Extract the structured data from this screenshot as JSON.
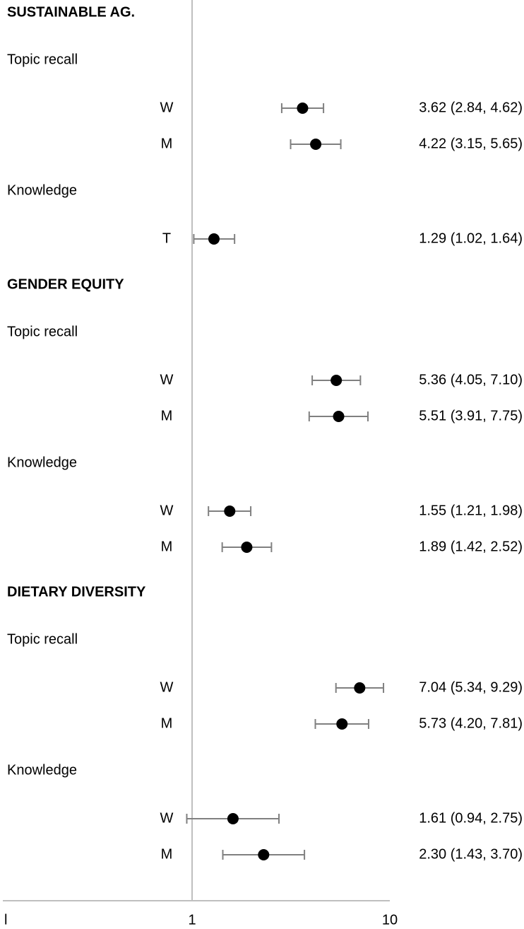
{
  "chart_data": {
    "type": "forest",
    "x_scale": "log",
    "xlim": [
      0.1,
      10
    ],
    "reference_line": 1,
    "x_ticks": [
      {
        "value": 0.1,
        "label": "l"
      },
      {
        "value": 1,
        "label": "1"
      },
      {
        "value": 10,
        "label": "10"
      }
    ],
    "sections": [
      {
        "title": "SUSTAINABLE AG.",
        "outcomes": [
          {
            "name": "Topic recall",
            "rows": [
              {
                "group": "W",
                "est": 3.62,
                "lo": 2.84,
                "hi": 4.62,
                "label": "3.62 (2.84, 4.62)"
              },
              {
                "group": "M",
                "est": 4.22,
                "lo": 3.15,
                "hi": 5.65,
                "label": "4.22 (3.15, 5.65)"
              }
            ]
          },
          {
            "name": "Knowledge",
            "rows": [
              {
                "group": "T",
                "est": 1.29,
                "lo": 1.02,
                "hi": 1.64,
                "label": "1.29 (1.02, 1.64)"
              }
            ]
          }
        ]
      },
      {
        "title": "GENDER EQUITY",
        "outcomes": [
          {
            "name": "Topic recall",
            "rows": [
              {
                "group": "W",
                "est": 5.36,
                "lo": 4.05,
                "hi": 7.1,
                "label": "5.36 (4.05, 7.10)"
              },
              {
                "group": "M",
                "est": 5.51,
                "lo": 3.91,
                "hi": 7.75,
                "label": "5.51 (3.91, 7.75)"
              }
            ]
          },
          {
            "name": "Knowledge",
            "rows": [
              {
                "group": "W",
                "est": 1.55,
                "lo": 1.21,
                "hi": 1.98,
                "label": "1.55 (1.21, 1.98)"
              },
              {
                "group": "M",
                "est": 1.89,
                "lo": 1.42,
                "hi": 2.52,
                "label": "1.89 (1.42, 2.52)"
              }
            ]
          }
        ]
      },
      {
        "title": "DIETARY DIVERSITY",
        "outcomes": [
          {
            "name": "Topic recall",
            "rows": [
              {
                "group": "W",
                "est": 7.04,
                "lo": 5.34,
                "hi": 9.29,
                "label": "7.04 (5.34, 9.29)"
              },
              {
                "group": "M",
                "est": 5.73,
                "lo": 4.2,
                "hi": 7.81,
                "label": "5.73 (4.20, 7.81)"
              }
            ]
          },
          {
            "name": "Knowledge",
            "rows": [
              {
                "group": "W",
                "est": 1.61,
                "lo": 0.94,
                "hi": 2.75,
                "label": "1.61 (0.94, 2.75)"
              },
              {
                "group": "M",
                "est": 2.3,
                "lo": 1.43,
                "hi": 3.7,
                "label": "2.30 (1.43, 3.70)"
              }
            ]
          }
        ]
      }
    ],
    "colors": {
      "point": "#000000",
      "ci": "#808080",
      "axis": "#bfbfbf"
    }
  }
}
